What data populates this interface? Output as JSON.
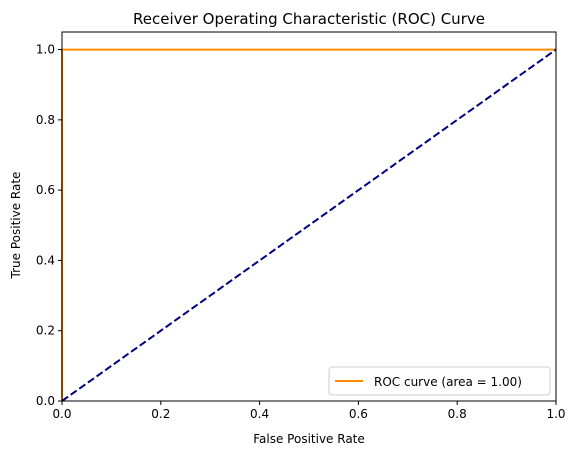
{
  "chart_data": {
    "type": "line",
    "title": "Receiver Operating Characteristic (ROC) Curve",
    "xlabel": "False Positive Rate",
    "ylabel": "True Positive Rate",
    "xlim": [
      0.0,
      1.0
    ],
    "ylim": [
      0.0,
      1.05
    ],
    "x_ticks": [
      0.0,
      0.2,
      0.4,
      0.6,
      0.8,
      1.0
    ],
    "y_ticks": [
      0.0,
      0.2,
      0.4,
      0.6,
      0.8,
      1.0
    ],
    "x_tick_labels": [
      "0.0",
      "0.2",
      "0.4",
      "0.6",
      "0.8",
      "1.0"
    ],
    "y_tick_labels": [
      "0.0",
      "0.2",
      "0.4",
      "0.6",
      "0.8",
      "1.0"
    ],
    "grid": false,
    "legend_position": "lower right",
    "series": [
      {
        "name": "ROC curve (area = 1.00)",
        "color": "#ff8c00",
        "style": "solid",
        "points": [
          [
            0.0,
            0.0
          ],
          [
            0.0,
            1.0
          ],
          [
            1.0,
            1.0
          ]
        ]
      },
      {
        "color": "#000080",
        "style": "dashed",
        "points": [
          [
            0.0,
            0.0
          ],
          [
            1.0,
            1.0
          ]
        ]
      }
    ]
  }
}
